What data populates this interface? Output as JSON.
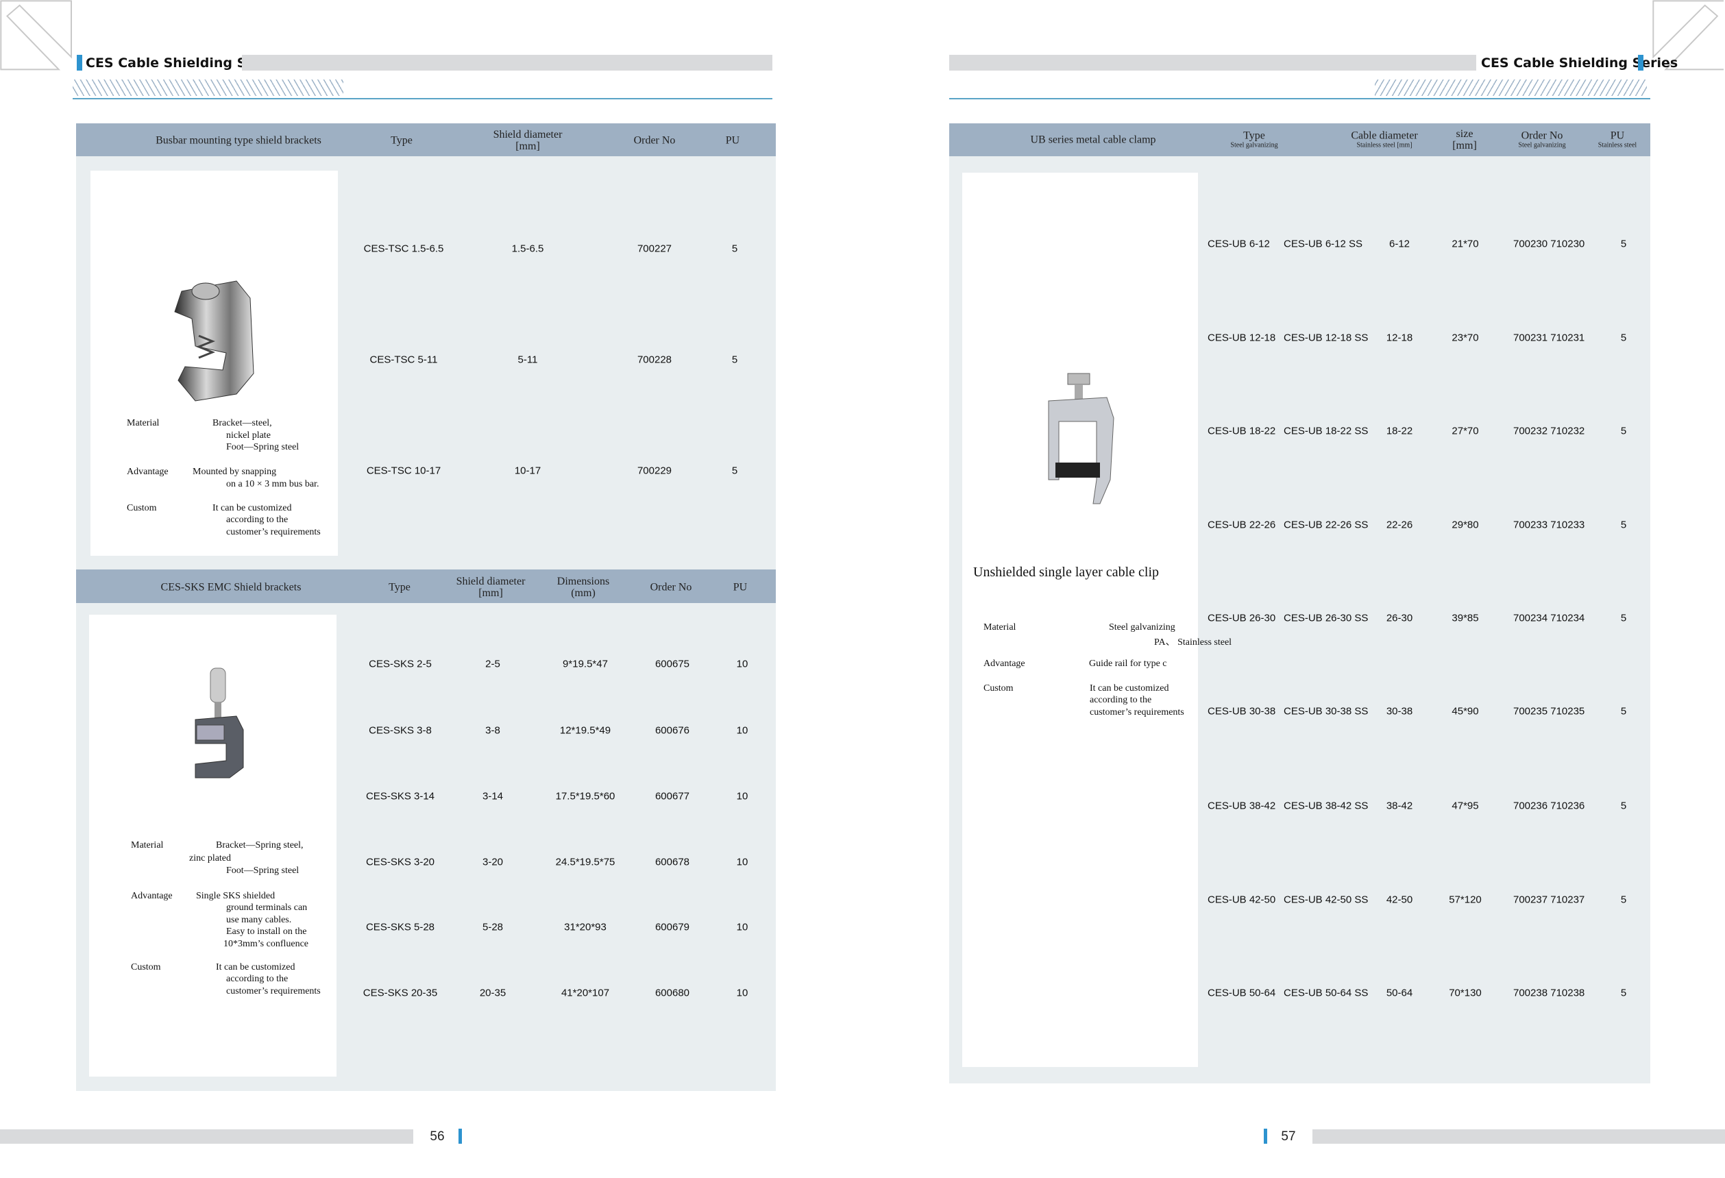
{
  "left_page": {
    "section_title": "CES Cable Shielding Series",
    "page_number": "56",
    "table1": {
      "headers": {
        "title": "Busbar mounting type shield brackets",
        "type": "Type",
        "shield": "Shield diameter",
        "shield_unit": "[mm]",
        "order": "Order No",
        "pu": "PU"
      },
      "rows": [
        {
          "type": "CES-TSC 1.5-6.5",
          "shield": "1.5-6.5",
          "order": "700227",
          "pu": "5"
        },
        {
          "type": "CES-TSC 5-11",
          "shield": "5-11",
          "order": "700228",
          "pu": "5"
        },
        {
          "type": "CES-TSC 10-17",
          "shield": "10-17",
          "order": "700229",
          "pu": "5"
        }
      ],
      "description": [
        "Material",
        "Bracket—steel,",
        "nickel plate",
        "Foot—Spring steel",
        "Advantage",
        "Mounted by snapping",
        "on a 10 × 3 mm bus bar.",
        "Custom",
        "It can be customized",
        "according to the",
        "customer’s requirements"
      ]
    },
    "table2": {
      "headers": {
        "title": "CES-SKS EMC Shield brackets",
        "type": "Type",
        "shield": "Shield diameter",
        "shield_unit": "[mm]",
        "dims": "Dimensions",
        "dims_unit": "(mm)",
        "order": "Order No",
        "pu": "PU"
      },
      "rows": [
        {
          "type": "CES-SKS 2-5",
          "shield": "2-5",
          "dims": "9*19.5*47",
          "order": "600675",
          "pu": "10"
        },
        {
          "type": "CES-SKS 3-8",
          "shield": "3-8",
          "dims": "12*19.5*49",
          "order": "600676",
          "pu": "10"
        },
        {
          "type": "CES-SKS 3-14",
          "shield": "3-14",
          "dims": "17.5*19.5*60",
          "order": "600677",
          "pu": "10"
        },
        {
          "type": "CES-SKS 3-20",
          "shield": "3-20",
          "dims": "24.5*19.5*75",
          "order": "600678",
          "pu": "10"
        },
        {
          "type": "CES-SKS 5-28",
          "shield": "5-28",
          "dims": "31*20*93",
          "order": "600679",
          "pu": "10"
        },
        {
          "type": "CES-SKS 20-35",
          "shield": "20-35",
          "dims": "41*20*107",
          "order": "600680",
          "pu": "10"
        }
      ],
      "description": [
        "Material",
        "Bracket—Spring steel,",
        "zinc plated",
        "Foot—Spring steel",
        "Advantage",
        "Single SKS shielded",
        "ground terminals can",
        "use many cables.",
        "Easy to install on the",
        "10*3mm’s confluence",
        "Custom",
        "It can be customized",
        "according to the",
        "customer’s requirements"
      ]
    }
  },
  "right_page": {
    "section_title": "CES Cable Shielding Series",
    "page_number": "57",
    "table": {
      "headers": {
        "title": "UB series metal cable clamp",
        "type": "Type",
        "type_sub": "Steel galvanizing",
        "diam": "Cable diameter",
        "diam_sub": "Stainless steel [mm]",
        "size": "size",
        "size_unit": "[mm]",
        "order": "Order No",
        "order_sub": "Steel galvanizing",
        "pu": "PU",
        "pu_sub": "Stainless steel"
      },
      "rows": [
        {
          "steel": "CES-UB 6-12",
          "ss": "CES-UB 6-12 SS",
          "diam": "6-12",
          "size": "21*70",
          "order": "700230 710230",
          "pu": "5"
        },
        {
          "steel": "CES-UB 12-18",
          "ss": "CES-UB 12-18 SS",
          "diam": "12-18",
          "size": "23*70",
          "order": "700231 710231",
          "pu": "5"
        },
        {
          "steel": "CES-UB 18-22",
          "ss": "CES-UB 18-22 SS",
          "diam": "18-22",
          "size": "27*70",
          "order": "700232 710232",
          "pu": "5"
        },
        {
          "steel": "CES-UB 22-26",
          "ss": "CES-UB 22-26 SS",
          "diam": "22-26",
          "size": "29*80",
          "order": "700233 710233",
          "pu": "5"
        },
        {
          "steel": "CES-UB 26-30",
          "ss": "CES-UB 26-30 SS",
          "diam": "26-30",
          "size": "39*85",
          "order": "700234 710234",
          "pu": "5"
        },
        {
          "steel": "CES-UB 30-38",
          "ss": "CES-UB 30-38 SS",
          "diam": "30-38",
          "size": "45*90",
          "order": "700235 710235",
          "pu": "5"
        },
        {
          "steel": "CES-UB 38-42",
          "ss": "CES-UB 38-42 SS",
          "diam": "38-42",
          "size": "47*95",
          "order": "700236 710236",
          "pu": "5"
        },
        {
          "steel": "CES-UB 42-50",
          "ss": "CES-UB 42-50 SS",
          "diam": "42-50",
          "size": "57*120",
          "order": "700237 710237",
          "pu": "5"
        },
        {
          "steel": "CES-UB 50-64",
          "ss": "CES-UB 50-64 SS",
          "diam": "50-64",
          "size": "70*130",
          "order": "700238 710238",
          "pu": "5"
        }
      ],
      "product_name": "Unshielded single layer cable clip",
      "description": [
        "Material",
        "Steel galvanizing",
        "PA、 Stainless steel",
        "Advantage",
        "Guide rail for type c",
        "Custom",
        "It can be customized",
        "according to the",
        "customer’s requirements"
      ]
    }
  },
  "colors": {
    "accent": "#2d93cf",
    "header_bg": "#9eb0c3",
    "table_bg": "#e9eef0",
    "bar_gray": "#d9dadc"
  }
}
